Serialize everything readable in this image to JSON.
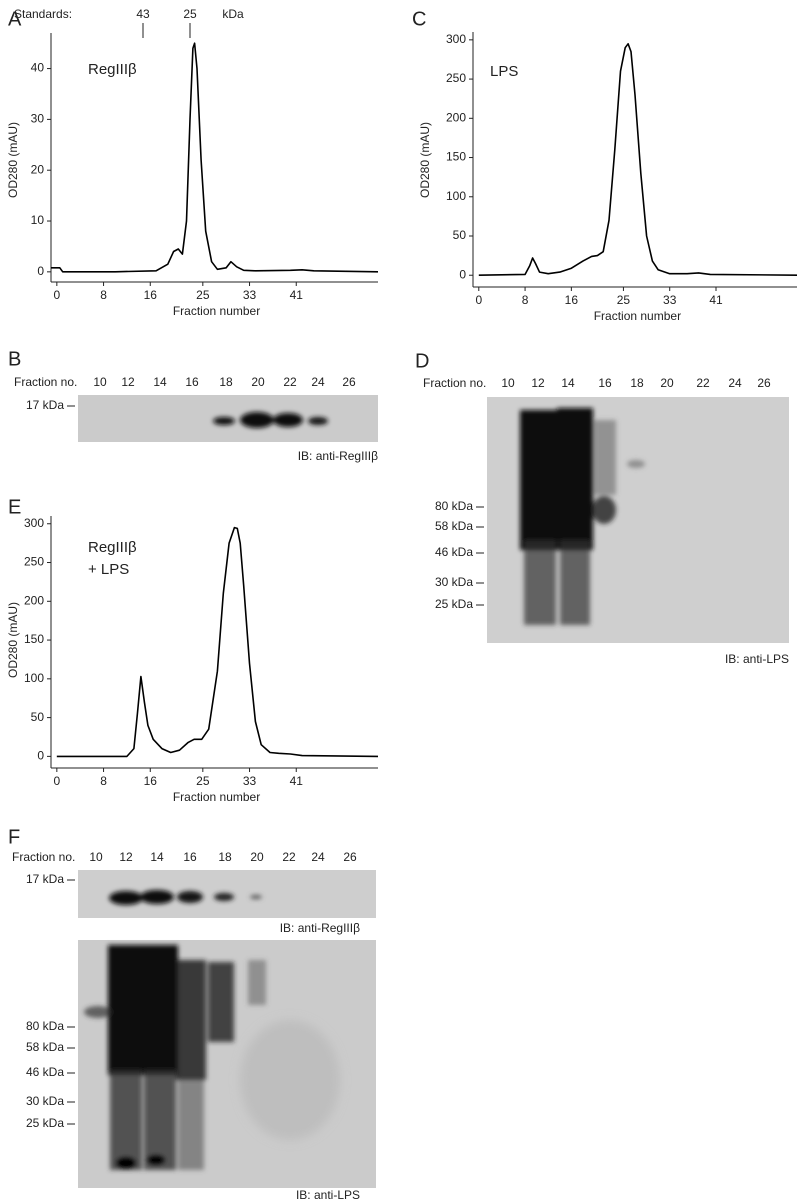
{
  "chart_data": [
    {
      "type": "line",
      "panel": "A",
      "label": [
        "RegIIIβ"
      ],
      "ylabel": "OD280 (mAU)",
      "xlabel": "Fraction number",
      "annotations": [
        "Standards:",
        "43",
        "25",
        "kDa"
      ],
      "xlim": [
        -1,
        55
      ],
      "xticks": [
        0,
        8,
        16,
        25,
        33,
        41
      ],
      "ylim": [
        -2,
        47
      ],
      "yticks": [
        0,
        10,
        20,
        30,
        40
      ],
      "series": [
        {
          "color": "#000000",
          "x": [
            -1,
            0.5,
            1,
            10,
            17,
            19,
            20,
            20.8,
            21.5,
            22.2,
            22.8,
            23.3,
            23.6,
            24,
            24.7,
            25.5,
            26.5,
            27.5,
            29,
            29.8,
            30.8,
            32,
            34,
            40,
            42,
            44,
            55
          ],
          "values": [
            0.8,
            0.8,
            0,
            0,
            0.2,
            1.5,
            4,
            4.5,
            3.5,
            10,
            30,
            44,
            45,
            40,
            22,
            8,
            2,
            0.5,
            0.8,
            2,
            1,
            0.3,
            0.2,
            0.3,
            0.4,
            0.2,
            0
          ]
        }
      ]
    },
    {
      "type": "line",
      "panel": "C",
      "label": [
        "LPS"
      ],
      "ylabel": "OD280 (mAU)",
      "xlabel": "Fraction number",
      "xlim": [
        -1,
        55
      ],
      "xticks": [
        0,
        8,
        16,
        25,
        33,
        41
      ],
      "ylim": [
        -15,
        310
      ],
      "yticks": [
        0,
        50,
        100,
        150,
        200,
        250,
        300
      ],
      "series": [
        {
          "color": "#000000",
          "x": [
            0,
            8,
            8.8,
            9.3,
            9.8,
            10.5,
            12,
            14,
            16,
            18,
            19.5,
            20.5,
            21.5,
            22.5,
            23.5,
            24.5,
            25.3,
            25.8,
            26.3,
            27,
            28,
            29,
            30,
            31,
            33,
            36,
            38,
            40,
            55
          ],
          "values": [
            0,
            1,
            12,
            22,
            15,
            4,
            2,
            4,
            9,
            18,
            24,
            25,
            30,
            70,
            160,
            260,
            290,
            295,
            285,
            230,
            130,
            50,
            18,
            7,
            2,
            2,
            3,
            1,
            0
          ]
        }
      ]
    },
    {
      "type": "line",
      "panel": "E",
      "label": [
        "RegIIIβ",
        "+ LPS"
      ],
      "ylabel": "OD280 (mAU)",
      "xlabel": "Fraction number",
      "xlim": [
        -1,
        55
      ],
      "xticks": [
        0,
        8,
        16,
        25,
        33,
        41
      ],
      "ylim": [
        -15,
        310
      ],
      "yticks": [
        0,
        50,
        100,
        150,
        200,
        250,
        300
      ],
      "series": [
        {
          "color": "#000000",
          "x": [
            0,
            12,
            13.2,
            13.8,
            14.4,
            15,
            15.6,
            16.5,
            18,
            19.5,
            21,
            22.5,
            23.5,
            24.8,
            26,
            27.5,
            28.5,
            29.5,
            30.4,
            30.9,
            31.4,
            32,
            33,
            34,
            35,
            36.5,
            38,
            40,
            42,
            55
          ],
          "values": [
            0,
            0,
            10,
            55,
            103,
            70,
            40,
            22,
            10,
            5,
            8,
            18,
            22,
            22,
            35,
            110,
            210,
            275,
            295,
            294,
            275,
            220,
            120,
            45,
            15,
            5,
            4,
            3,
            1,
            0
          ]
        }
      ]
    }
  ],
  "blots": [
    {
      "panel": "B",
      "header": "Fraction no.",
      "lanes": [
        "10",
        "12",
        "14",
        "16",
        "18",
        "20",
        "22",
        "24",
        "26"
      ],
      "parts": [
        {
          "markers": [
            "17 kDa"
          ],
          "caption": "IB: anti-RegIIIβ"
        }
      ]
    },
    {
      "panel": "D",
      "header": "Fraction no.",
      "lanes": [
        "10",
        "12",
        "14",
        "16",
        "18",
        "20",
        "22",
        "24",
        "26"
      ],
      "parts": [
        {
          "markers": [
            "80 kDa",
            "58 kDa",
            "46 kDa",
            "30 kDa",
            "25 kDa"
          ],
          "caption": "IB: anti-LPS"
        }
      ]
    },
    {
      "panel": "F",
      "header": "Fraction no.",
      "lanes": [
        "10",
        "12",
        "14",
        "16",
        "18",
        "20",
        "22",
        "24",
        "26"
      ],
      "parts": [
        {
          "markers": [
            "17 kDa"
          ],
          "caption": "IB: anti-RegIIIβ"
        },
        {
          "markers": [
            "80 kDa",
            "58 kDa",
            "46 kDa",
            "30 kDa",
            "25 kDa"
          ],
          "caption": "IB: anti-LPS"
        }
      ]
    }
  ]
}
